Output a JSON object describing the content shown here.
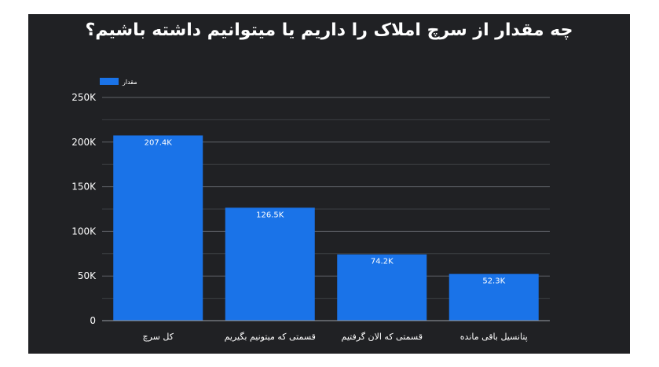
{
  "chart_data": {
    "type": "bar",
    "title": "چه مقدار از سرچ املاک را داریم یا میتوانیم داشته باشیم؟",
    "categories": [
      "کل سرچ",
      "قسمتی که میتونیم بگیریم",
      "قسمتی که الان گرفتیم",
      "پتانسیل باقی مانده"
    ],
    "series": [
      {
        "name": "مقدار",
        "values": [
          207400,
          126500,
          74200,
          52300
        ],
        "data_labels": [
          "207.4K",
          "126.5K",
          "74.2K",
          "52.3K"
        ]
      }
    ],
    "ylim": [
      0,
      250000
    ],
    "y_ticks": [
      0,
      50000,
      100000,
      150000,
      200000,
      250000
    ],
    "y_tick_labels": [
      "0",
      "50K",
      "100K",
      "150K",
      "200K",
      "250K"
    ],
    "minor_gridlines": true,
    "legend_position": "top-left",
    "colors": {
      "background": "#202124",
      "bar": "#1a73e8",
      "grid": "#5f6368",
      "text": "#ffffff"
    }
  }
}
